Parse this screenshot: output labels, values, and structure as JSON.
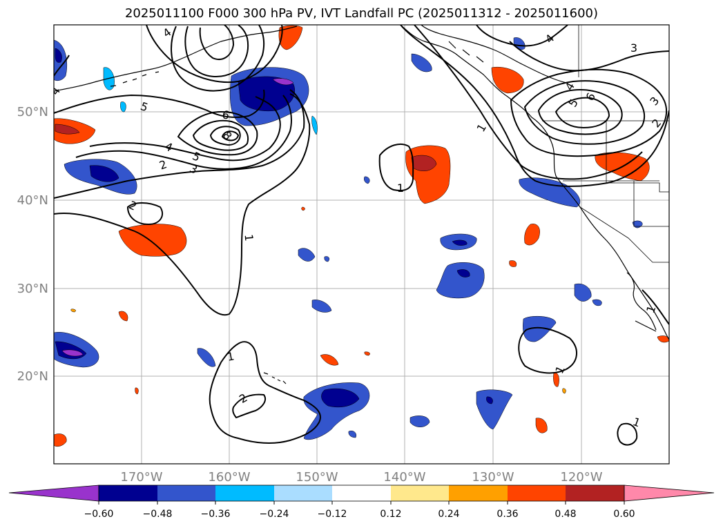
{
  "title": "2025011100 F000 300 hPa PV, IVT Landfall PC (2025011312 - 2025011600)",
  "lon_ticks": [
    "170°W",
    "160°W",
    "150°W",
    "140°W",
    "130°W",
    "120°W"
  ],
  "lat_ticks": [
    "50°N",
    "40°N",
    "30°N",
    "20°N"
  ],
  "contour_labels": [
    "4",
    "5",
    "6",
    "8",
    "4",
    "5",
    "3",
    "2",
    "2",
    "1",
    "1",
    "1",
    "2",
    "1",
    "1",
    "3",
    "4",
    "4",
    "5",
    "6",
    "3",
    "2",
    "1",
    "1",
    "4"
  ],
  "colorbar": {
    "colors": [
      "#9933cc",
      "#000090",
      "#3355cc",
      "#00bbff",
      "#aaddff",
      "#ffffff",
      "#ffe88c",
      "#ffa000",
      "#ff4400",
      "#b22222",
      "#ff88aa"
    ],
    "tick_labels": [
      "−0.60",
      "−0.48",
      "−0.36",
      "−0.24",
      "−0.12",
      "0.12",
      "0.24",
      "0.36",
      "0.48",
      "0.60"
    ]
  },
  "colors": {
    "tick_text": "#808080",
    "grid": "#b0b0b0",
    "contour": "#000000"
  }
}
